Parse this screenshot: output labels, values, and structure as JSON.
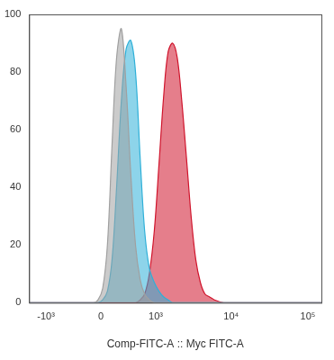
{
  "chart_data": {
    "type": "histogram_overlay",
    "x_label": "Comp-FITC-A :: Myc FITC-A",
    "x": [
      -1700,
      -90,
      -34,
      22,
      79,
      137,
      196,
      262,
      333,
      409,
      495,
      590,
      690,
      810,
      955,
      1110,
      1290,
      1480,
      1700,
      1960,
      2250,
      2600,
      2990,
      3440,
      3960,
      4550,
      5230,
      6040,
      8000,
      10600,
      150000
    ],
    "series": [
      {
        "color": "#a0a0a0",
        "values": [
          0,
          0,
          1,
          5,
          20,
          55,
          85,
          95,
          75,
          45,
          20,
          8,
          3,
          1,
          0,
          0,
          0,
          0,
          0,
          0,
          0,
          0,
          0,
          0,
          0,
          0,
          0,
          0,
          0,
          0,
          0
        ]
      },
      {
        "color": "#2fb0d8",
        "values": [
          0,
          0,
          0,
          1,
          4,
          15,
          40,
          70,
          88,
          91,
          80,
          50,
          25,
          12,
          7,
          4,
          2,
          1,
          0,
          0,
          0,
          0,
          0,
          0,
          0,
          0,
          0,
          0,
          0,
          0,
          0
        ]
      },
      {
        "color": "#d0142c",
        "values": [
          0,
          0,
          0,
          0,
          0,
          0,
          0,
          0,
          0,
          0,
          0,
          1,
          3,
          10,
          25,
          48,
          72,
          87,
          90,
          85,
          70,
          50,
          30,
          15,
          7,
          3,
          2,
          1,
          0,
          0,
          0
        ]
      }
    ],
    "xlim": [
      -1700,
      150000
    ],
    "xticks": [
      {
        "value": -1000,
        "label": "-10³"
      },
      0,
      {
        "value": 1000,
        "label": "10³"
      },
      {
        "value": 10000,
        "label": "10⁴"
      },
      {
        "value": 100000,
        "label": "10⁵"
      }
    ],
    "ylim": [
      0,
      100
    ],
    "yticks": [
      0,
      20,
      40,
      60,
      80,
      100
    ],
    "grid": false
  }
}
